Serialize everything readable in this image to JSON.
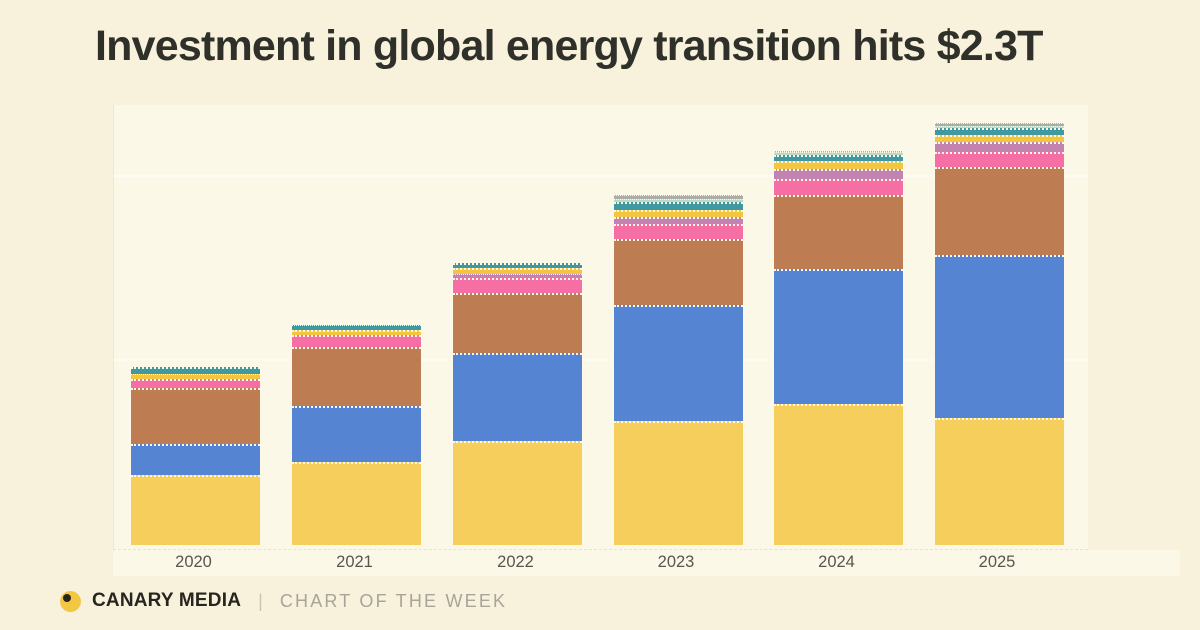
{
  "page": {
    "background": "#f8f2dc",
    "plot_background": "#fcf8e8"
  },
  "title": {
    "text": "Investment in global energy transition hits $2.3T",
    "color": "#30302a"
  },
  "footer": {
    "brand": "CANARY MEDIA",
    "divider": "|",
    "tagline": "CHART OF THE WEEK",
    "logo_color": "#f2c741",
    "logo_dot_color": "#26251f",
    "brand_color": "#26251f",
    "tagline_color": "#a8a499"
  },
  "chart_data": {
    "type": "bar",
    "stacked": true,
    "title": "Investment in global energy transition hits $2.3T",
    "xlabel": "",
    "ylabel": "",
    "unit": "billion USD",
    "legend": "none",
    "categories": [
      "2020",
      "2021",
      "2022",
      "2023",
      "2024",
      "2025"
    ],
    "series": [
      {
        "name": "segment-yellow",
        "color": "#f6ce5b",
        "values": [
          380,
          451,
          568,
          674,
          764,
          688
        ]
      },
      {
        "name": "segment-blue",
        "color": "#5584d2",
        "values": [
          168,
          304,
          473,
          628,
          735,
          890
        ]
      },
      {
        "name": "segment-brown",
        "color": "#bd7c52",
        "values": [
          304,
          321,
          329,
          359,
          404,
          477
        ]
      },
      {
        "name": "segment-pink",
        "color": "#f56fa4",
        "values": [
          49,
          65,
          82,
          84,
          85,
          80
        ]
      },
      {
        "name": "segment-mauve",
        "color": "#c383b1",
        "values": [
          0,
          0,
          19,
          38,
          54,
          54
        ]
      },
      {
        "name": "segment-gold",
        "color": "#f2c640",
        "values": [
          27,
          30,
          33,
          38,
          43,
          40
        ]
      },
      {
        "name": "segment-teal",
        "color": "#3f99a1",
        "values": [
          41,
          27,
          30,
          43,
          37,
          40
        ]
      },
      {
        "name": "segment-mint",
        "color": "#bcd9c6",
        "values": [
          0,
          0,
          0,
          19,
          14,
          11
        ]
      },
      {
        "name": "segment-gray",
        "color": "#adaca6",
        "values": [
          0,
          0,
          0,
          19,
          8,
          14
        ]
      }
    ],
    "totals_billions": [
      969,
      1198,
      1534,
      1902,
      2144,
      2294
    ],
    "y_axis": {
      "labels_visible": false,
      "gridlines_trillions": [
        1,
        2
      ],
      "ylim_trillions": [
        0,
        2.42
      ],
      "grid": "on"
    },
    "x_axis": {
      "labels_visible": true,
      "label_color": "#57564f"
    }
  }
}
